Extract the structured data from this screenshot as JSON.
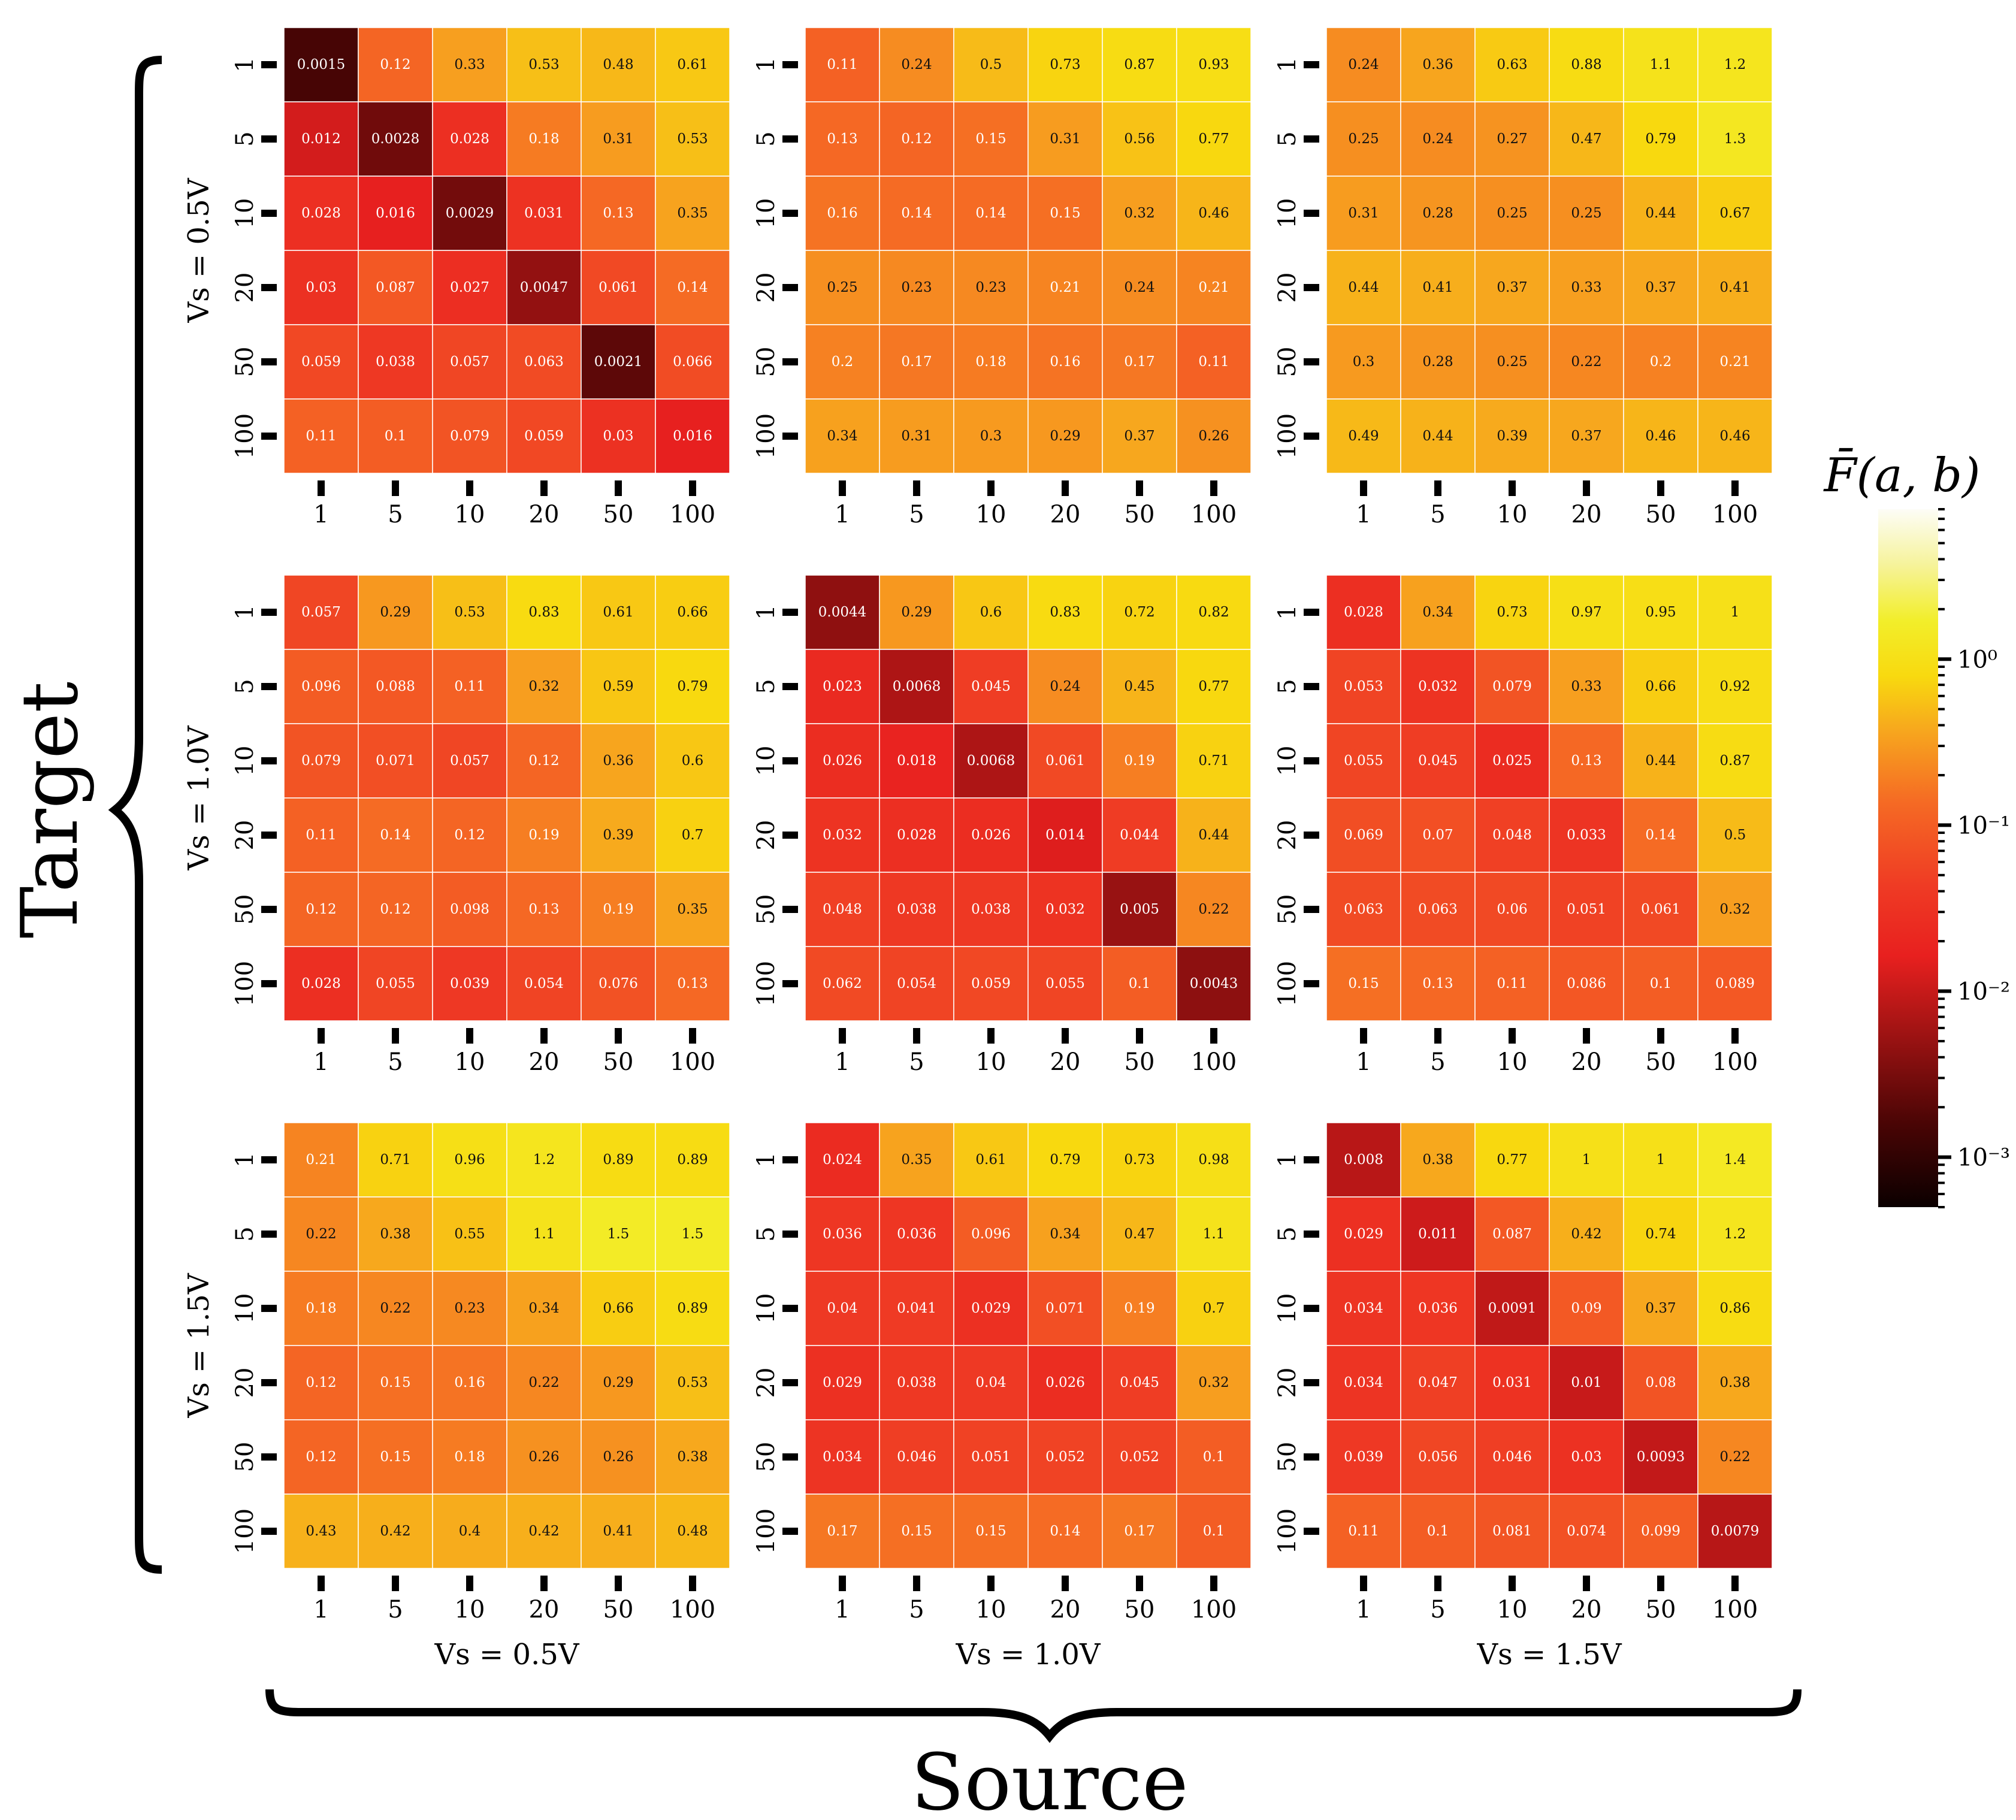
{
  "figure": {
    "x_group_label": "Source",
    "y_group_label": "Target",
    "colorbar_label": "F̄(a, b)"
  },
  "chart_data": {
    "type": "heatmap",
    "scale": "log",
    "colormap": "hot",
    "color_range": [
      0.0005,
      8
    ],
    "colorbar_ticks": [
      {
        "value": 0.001,
        "label": "10⁻³"
      },
      {
        "value": 0.01,
        "label": "10⁻²"
      },
      {
        "value": 0.1,
        "label": "10⁻¹"
      },
      {
        "value": 1,
        "label": "10⁰"
      }
    ],
    "source_groups": [
      "Vs = 0.5V",
      "Vs = 1.0V",
      "Vs = 1.5V"
    ],
    "target_groups": [
      "Vs = 0.5V",
      "Vs = 1.0V",
      "Vs = 1.5V"
    ],
    "x_ticks": [
      "1",
      "5",
      "10",
      "20",
      "50",
      "100"
    ],
    "y_ticks": [
      "1",
      "5",
      "10",
      "20",
      "50",
      "100"
    ],
    "panels": [
      {
        "target": "Vs = 0.5V",
        "source": "Vs = 0.5V",
        "values": [
          [
            "0.0015",
            "0.12",
            "0.33",
            "0.53",
            "0.48",
            "0.61"
          ],
          [
            "0.012",
            "0.0028",
            "0.028",
            "0.18",
            "0.31",
            "0.53"
          ],
          [
            "0.028",
            "0.016",
            "0.0029",
            "0.031",
            "0.13",
            "0.35"
          ],
          [
            "0.03",
            "0.087",
            "0.027",
            "0.0047",
            "0.061",
            "0.14"
          ],
          [
            "0.059",
            "0.038",
            "0.057",
            "0.063",
            "0.0021",
            "0.066"
          ],
          [
            "0.11",
            "0.1",
            "0.079",
            "0.059",
            "0.03",
            "0.016"
          ]
        ]
      },
      {
        "target": "Vs = 0.5V",
        "source": "Vs = 1.0V",
        "values": [
          [
            "0.11",
            "0.24",
            "0.5",
            "0.73",
            "0.87",
            "0.93"
          ],
          [
            "0.13",
            "0.12",
            "0.15",
            "0.31",
            "0.56",
            "0.77"
          ],
          [
            "0.16",
            "0.14",
            "0.14",
            "0.15",
            "0.32",
            "0.46"
          ],
          [
            "0.25",
            "0.23",
            "0.23",
            "0.21",
            "0.24",
            "0.21"
          ],
          [
            "0.2",
            "0.17",
            "0.18",
            "0.16",
            "0.17",
            "0.11"
          ],
          [
            "0.34",
            "0.31",
            "0.3",
            "0.29",
            "0.37",
            "0.26"
          ]
        ]
      },
      {
        "target": "Vs = 0.5V",
        "source": "Vs = 1.5V",
        "values": [
          [
            "0.24",
            "0.36",
            "0.63",
            "0.88",
            "1.1",
            "1.2"
          ],
          [
            "0.25",
            "0.24",
            "0.27",
            "0.47",
            "0.79",
            "1.3"
          ],
          [
            "0.31",
            "0.28",
            "0.25",
            "0.25",
            "0.44",
            "0.67"
          ],
          [
            "0.44",
            "0.41",
            "0.37",
            "0.33",
            "0.37",
            "0.41"
          ],
          [
            "0.3",
            "0.28",
            "0.25",
            "0.22",
            "0.2",
            "0.21"
          ],
          [
            "0.49",
            "0.44",
            "0.39",
            "0.37",
            "0.46",
            "0.46"
          ]
        ]
      },
      {
        "target": "Vs = 1.0V",
        "source": "Vs = 0.5V",
        "values": [
          [
            "0.057",
            "0.29",
            "0.53",
            "0.83",
            "0.61",
            "0.66"
          ],
          [
            "0.096",
            "0.088",
            "0.11",
            "0.32",
            "0.59",
            "0.79"
          ],
          [
            "0.079",
            "0.071",
            "0.057",
            "0.12",
            "0.36",
            "0.6"
          ],
          [
            "0.11",
            "0.14",
            "0.12",
            "0.19",
            "0.39",
            "0.7"
          ],
          [
            "0.12",
            "0.12",
            "0.098",
            "0.13",
            "0.19",
            "0.35"
          ],
          [
            "0.028",
            "0.055",
            "0.039",
            "0.054",
            "0.076",
            "0.13"
          ]
        ]
      },
      {
        "target": "Vs = 1.0V",
        "source": "Vs = 1.0V",
        "values": [
          [
            "0.0044",
            "0.29",
            "0.6",
            "0.83",
            "0.72",
            "0.82"
          ],
          [
            "0.023",
            "0.0068",
            "0.045",
            "0.24",
            "0.45",
            "0.77"
          ],
          [
            "0.026",
            "0.018",
            "0.0068",
            "0.061",
            "0.19",
            "0.71"
          ],
          [
            "0.032",
            "0.028",
            "0.026",
            "0.014",
            "0.044",
            "0.44"
          ],
          [
            "0.048",
            "0.038",
            "0.038",
            "0.032",
            "0.005",
            "0.22"
          ],
          [
            "0.062",
            "0.054",
            "0.059",
            "0.055",
            "0.1",
            "0.0043"
          ]
        ]
      },
      {
        "target": "Vs = 1.0V",
        "source": "Vs = 1.5V",
        "values": [
          [
            "0.028",
            "0.34",
            "0.73",
            "0.97",
            "0.95",
            "1"
          ],
          [
            "0.053",
            "0.032",
            "0.079",
            "0.33",
            "0.66",
            "0.92"
          ],
          [
            "0.055",
            "0.045",
            "0.025",
            "0.13",
            "0.44",
            "0.87"
          ],
          [
            "0.069",
            "0.07",
            "0.048",
            "0.033",
            "0.14",
            "0.5"
          ],
          [
            "0.063",
            "0.063",
            "0.06",
            "0.051",
            "0.061",
            "0.32"
          ],
          [
            "0.15",
            "0.13",
            "0.11",
            "0.086",
            "0.1",
            "0.089"
          ]
        ]
      },
      {
        "target": "Vs = 1.5V",
        "source": "Vs = 0.5V",
        "values": [
          [
            "0.21",
            "0.71",
            "0.96",
            "1.2",
            "0.89",
            "0.89"
          ],
          [
            "0.22",
            "0.38",
            "0.55",
            "1.1",
            "1.5",
            "1.5"
          ],
          [
            "0.18",
            "0.22",
            "0.23",
            "0.34",
            "0.66",
            "0.89"
          ],
          [
            "0.12",
            "0.15",
            "0.16",
            "0.22",
            "0.29",
            "0.53"
          ],
          [
            "0.12",
            "0.15",
            "0.18",
            "0.26",
            "0.26",
            "0.38"
          ],
          [
            "0.43",
            "0.42",
            "0.4",
            "0.42",
            "0.41",
            "0.48"
          ]
        ]
      },
      {
        "target": "Vs = 1.5V",
        "source": "Vs = 1.0V",
        "values": [
          [
            "0.024",
            "0.35",
            "0.61",
            "0.79",
            "0.73",
            "0.98"
          ],
          [
            "0.036",
            "0.036",
            "0.096",
            "0.34",
            "0.47",
            "1.1"
          ],
          [
            "0.04",
            "0.041",
            "0.029",
            "0.071",
            "0.19",
            "0.7"
          ],
          [
            "0.029",
            "0.038",
            "0.04",
            "0.026",
            "0.045",
            "0.32"
          ],
          [
            "0.034",
            "0.046",
            "0.051",
            "0.052",
            "0.052",
            "0.1"
          ],
          [
            "0.17",
            "0.15",
            "0.15",
            "0.14",
            "0.17",
            "0.1"
          ]
        ]
      },
      {
        "target": "Vs = 1.5V",
        "source": "Vs = 1.5V",
        "values": [
          [
            "0.008",
            "0.38",
            "0.77",
            "1",
            "1",
            "1.4"
          ],
          [
            "0.029",
            "0.011",
            "0.087",
            "0.42",
            "0.74",
            "1.2"
          ],
          [
            "0.034",
            "0.036",
            "0.0091",
            "0.09",
            "0.37",
            "0.86"
          ],
          [
            "0.034",
            "0.047",
            "0.031",
            "0.01",
            "0.08",
            "0.38"
          ],
          [
            "0.039",
            "0.056",
            "0.046",
            "0.03",
            "0.0093",
            "0.22"
          ],
          [
            "0.11",
            "0.1",
            "0.081",
            "0.074",
            "0.099",
            "0.0079"
          ]
        ]
      }
    ]
  }
}
